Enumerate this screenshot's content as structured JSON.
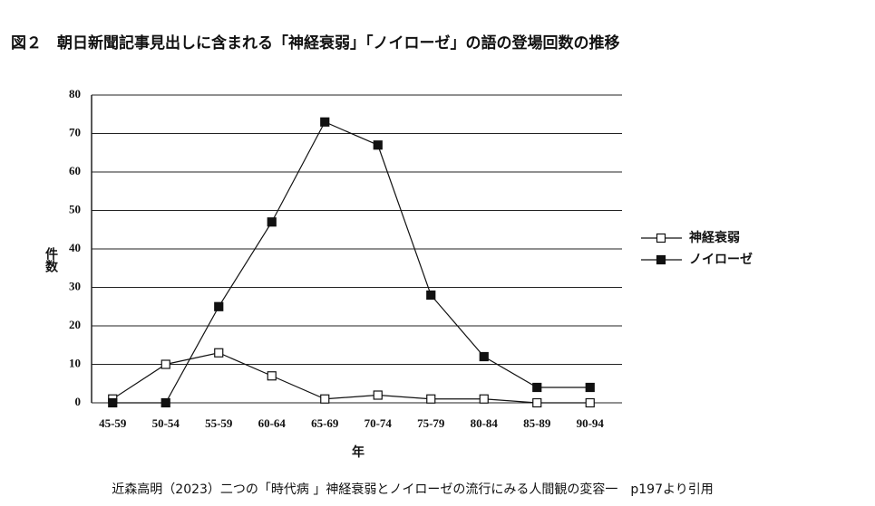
{
  "chart_data": {
    "type": "line",
    "title": "図２　朝日新聞記事見出しに含まれる「神経衰弱」「ノイローゼ」の語の登場回数の推移",
    "y_label": "件数",
    "x_label": "年",
    "source": "近森高明（2023）二つの「時代病 」神経衰弱とノイローゼの流行にみる人間観の変容一　p197より引用",
    "categories": [
      "45-59",
      "50-54",
      "55-59",
      "60-64",
      "65-69",
      "70-74",
      "75-79",
      "80-84",
      "85-89",
      "90-94"
    ],
    "series": [
      {
        "name": "神経衰弱",
        "color": "#111111",
        "marker": "open-square",
        "values": [
          1,
          10,
          13,
          7,
          1,
          2,
          1,
          1,
          0,
          0
        ]
      },
      {
        "name": "ノイローゼ",
        "color": "#111111",
        "marker": "filled-square",
        "values": [
          0,
          0,
          25,
          47,
          73,
          67,
          28,
          12,
          4,
          4
        ]
      }
    ],
    "ylim": [
      0,
      80
    ],
    "yticks": [
      0,
      10,
      20,
      30,
      40,
      50,
      60,
      70,
      80
    ],
    "grid": true,
    "legend": "right"
  }
}
